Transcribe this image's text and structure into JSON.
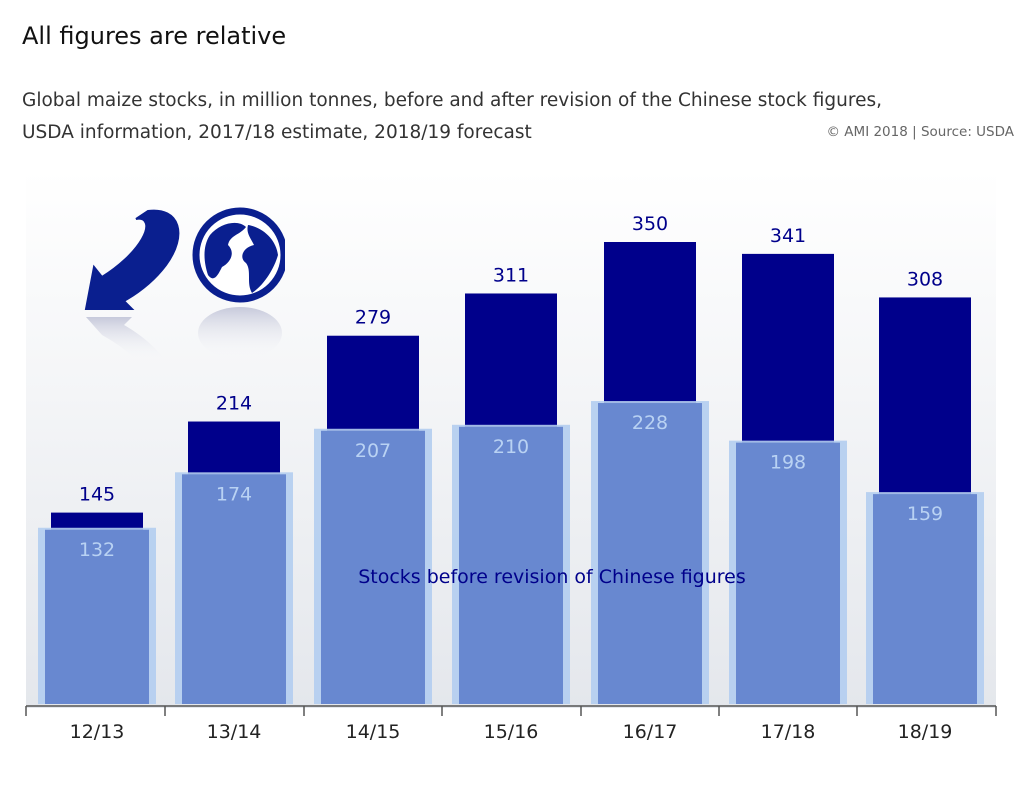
{
  "header": {
    "title": "All figures are relative",
    "subtitle_line1": "Global maize stocks, in million tonnes, before and after revision of the Chinese stock figures,",
    "subtitle_line2": "USDA information, 2017/18 estimate, 2018/19 forecast",
    "source": "© AMI 2018 | Source: USDA"
  },
  "colors": {
    "after_revision": "#00008b",
    "before_revision": "#6888d0",
    "before_revision_glow": "#b2cdf0",
    "before_label": "#b9d2f3"
  },
  "logo": {
    "icon": "arrow-and-globe-icon"
  },
  "chart_data": {
    "type": "bar",
    "categories": [
      "12/13",
      "13/14",
      "14/15",
      "15/16",
      "16/17",
      "17/18",
      "18/19"
    ],
    "series": [
      {
        "values": [
          145,
          214,
          279,
          311,
          350,
          341,
          308
        ]
      },
      {
        "name": "Stocks before revision of Chinese figures",
        "values": [
          132,
          174,
          207,
          210,
          228,
          198,
          159
        ]
      }
    ],
    "series_label": "Stocks before revision of Chinese figures",
    "ylim": [
      0,
      350
    ],
    "grid": false,
    "legend": "none"
  }
}
